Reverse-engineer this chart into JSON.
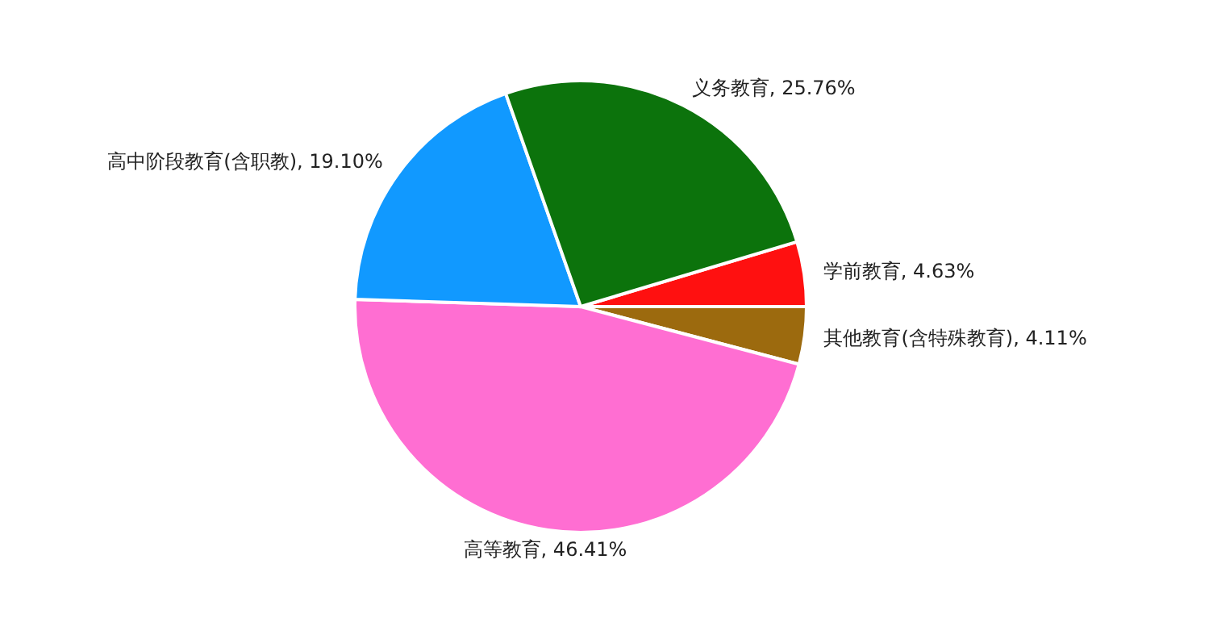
{
  "chart_data": {
    "type": "pie",
    "categories": [
      "学前教育",
      "其他教育(含特殊教育)",
      "高等教育",
      "高中阶段教育(含职教)",
      "义务教育"
    ],
    "values": [
      4.63,
      4.11,
      46.41,
      19.1,
      25.76
    ],
    "value_labels": [
      "4.63%",
      "4.11%",
      "46.41%",
      "19.10%",
      "25.76%"
    ],
    "colors": [
      "#ff1010",
      "#9c6a0e",
      "#ff6ed2",
      "#1199ff",
      "#0c730c"
    ]
  }
}
